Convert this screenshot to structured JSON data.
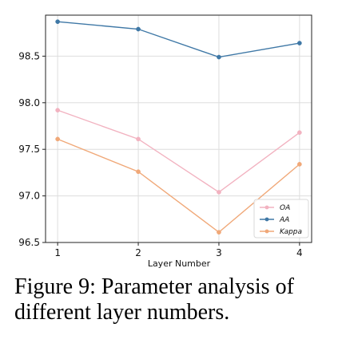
{
  "chart_data": {
    "type": "line",
    "x": [
      1,
      2,
      3,
      4
    ],
    "series": [
      {
        "name": "OA",
        "values": [
          97.92,
          97.61,
          97.04,
          97.68
        ],
        "color": "#f2b2c0"
      },
      {
        "name": "AA",
        "values": [
          98.87,
          98.79,
          98.49,
          98.64
        ],
        "color": "#3f78a6"
      },
      {
        "name": "Kappa",
        "values": [
          97.61,
          97.26,
          96.61,
          97.34
        ],
        "color": "#f0a878"
      }
    ],
    "xlabel": "Layer Number",
    "ylabel": "",
    "xticks": [
      1,
      2,
      3,
      4
    ],
    "yticks": [
      96.5,
      97.0,
      97.5,
      98.0,
      98.5
    ],
    "ytick_labels": [
      "96.5",
      "97.0",
      "97.5",
      "98.0",
      "98.5"
    ],
    "xlim": [
      0.85,
      4.15
    ],
    "ylim": [
      96.5,
      98.94
    ],
    "grid": true,
    "legend_position": "lower-right"
  },
  "caption": "Figure 9: Parameter analysis of different layer numbers."
}
